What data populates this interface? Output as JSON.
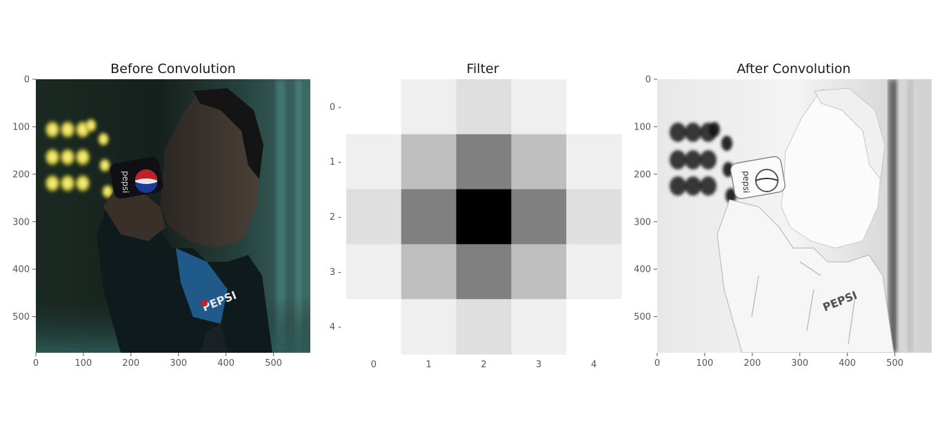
{
  "chart_data": [
    {
      "type": "image",
      "title": "Before Convolution",
      "xticks": [
        0,
        100,
        200,
        300,
        400,
        500
      ],
      "yticks": [
        0,
        100,
        200,
        300,
        400,
        500
      ],
      "xlim": [
        0,
        576
      ],
      "ylim": [
        576,
        0
      ],
      "grid": false
    },
    {
      "type": "heatmap",
      "title": "Filter",
      "xticks": [
        0,
        1,
        2,
        3,
        4
      ],
      "yticks": [
        0,
        1,
        2,
        3,
        4
      ],
      "colormap": "gray_r",
      "matrix": [
        [
          0,
          1,
          2,
          1,
          0
        ],
        [
          1,
          4,
          8,
          4,
          1
        ],
        [
          2,
          8,
          16,
          8,
          2
        ],
        [
          1,
          4,
          8,
          4,
          1
        ],
        [
          0,
          1,
          2,
          1,
          0
        ]
      ],
      "grid": false
    },
    {
      "type": "image",
      "title": "After Convolution",
      "xticks": [
        0,
        100,
        200,
        300,
        400,
        500
      ],
      "yticks": [
        0,
        100,
        200,
        300,
        400,
        500
      ],
      "xlim": [
        0,
        576
      ],
      "ylim": [
        576,
        0
      ],
      "grid": false
    }
  ],
  "photo_text": {
    "can_brand": "pepsi",
    "shirt_brand": "PEPSI"
  }
}
